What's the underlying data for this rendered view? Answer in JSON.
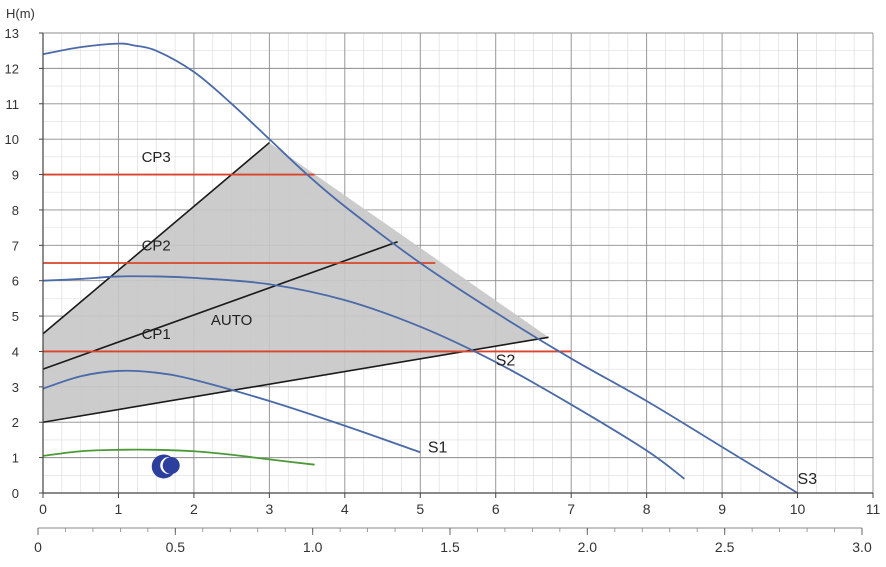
{
  "chart_data": {
    "type": "line",
    "ylabel": "H(m)",
    "x_primary": {
      "ticks": [
        0,
        1,
        2,
        3,
        4,
        5,
        6,
        7,
        8,
        9,
        10,
        11
      ],
      "lim": [
        0,
        11
      ]
    },
    "x_secondary": {
      "ticks": [
        "0",
        "0.5",
        "1.0",
        "1.5",
        "2.0",
        "2.5",
        "3.0"
      ],
      "values": [
        0,
        0.5,
        1.0,
        1.5,
        2.0,
        2.5,
        3.0
      ],
      "lim": [
        0,
        3.0
      ]
    },
    "y": {
      "ticks": [
        0,
        1,
        2,
        3,
        4,
        5,
        6,
        7,
        8,
        9,
        10,
        11,
        12,
        13
      ],
      "lim": [
        0,
        13
      ]
    },
    "grid": true,
    "auto_region": {
      "label": "AUTO",
      "polygon": [
        [
          0,
          2
        ],
        [
          0,
          4.5
        ],
        [
          3,
          9.9
        ],
        [
          6.7,
          4.4
        ]
      ],
      "color": "#c8c6c8"
    },
    "control_lines": [
      {
        "x": [
          0,
          3
        ],
        "y": [
          4.5,
          9.9
        ]
      },
      {
        "x": [
          0,
          4.7
        ],
        "y": [
          3.5,
          7.1
        ]
      },
      {
        "x": [
          0,
          6.7
        ],
        "y": [
          2.0,
          4.4
        ]
      }
    ],
    "constant_pressure": [
      {
        "name": "CP3",
        "y": 9.0,
        "x_end": 3.6,
        "label_at": [
          1.5,
          9.35
        ]
      },
      {
        "name": "CP2",
        "y": 6.5,
        "x_end": 5.2,
        "label_at": [
          1.5,
          6.85
        ]
      },
      {
        "name": "CP1",
        "y": 4.0,
        "x_end": 7.0,
        "label_at": [
          1.5,
          4.35
        ]
      }
    ],
    "series": [
      {
        "name": "S3",
        "color": "#4a6aa8",
        "x": [
          0,
          0.5,
          1.0,
          1.2,
          1.5,
          2.0,
          2.5,
          3.0,
          3.5,
          4.0,
          5.0,
          6.0,
          7.0,
          8.0,
          9.0,
          10.0
        ],
        "y": [
          12.4,
          12.6,
          12.7,
          12.65,
          12.5,
          11.9,
          11.0,
          10.0,
          9.0,
          8.1,
          6.5,
          5.1,
          3.8,
          2.6,
          1.3,
          0.0
        ],
        "label_at": [
          10.0,
          0.25
        ]
      },
      {
        "name": "S2",
        "color": "#4a6aa8",
        "x": [
          0,
          0.5,
          1.0,
          1.5,
          2.0,
          3.0,
          4.0,
          5.0,
          6.0,
          7.0,
          8.0,
          8.5
        ],
        "y": [
          6.0,
          6.05,
          6.12,
          6.12,
          6.08,
          5.9,
          5.45,
          4.7,
          3.7,
          2.5,
          1.2,
          0.4
        ],
        "label_at": [
          6.0,
          3.6
        ]
      },
      {
        "name": "S1",
        "color": "#4a6aa8",
        "x": [
          0,
          0.5,
          1.0,
          1.5,
          2.0,
          3.0,
          4.0,
          5.0
        ],
        "y": [
          2.95,
          3.3,
          3.45,
          3.4,
          3.2,
          2.6,
          1.9,
          1.15
        ],
        "label_at": [
          5.1,
          1.15
        ]
      },
      {
        "name": "",
        "color": "#4a9a36",
        "x": [
          0,
          0.5,
          1.0,
          1.5,
          2.0,
          2.5,
          3.0,
          3.6
        ],
        "y": [
          1.05,
          1.18,
          1.22,
          1.22,
          1.18,
          1.08,
          0.95,
          0.8
        ]
      }
    ],
    "night_icon": {
      "name": "moon-icon",
      "at": [
        1.6,
        0.75
      ],
      "color": "#2c3f9c"
    }
  }
}
